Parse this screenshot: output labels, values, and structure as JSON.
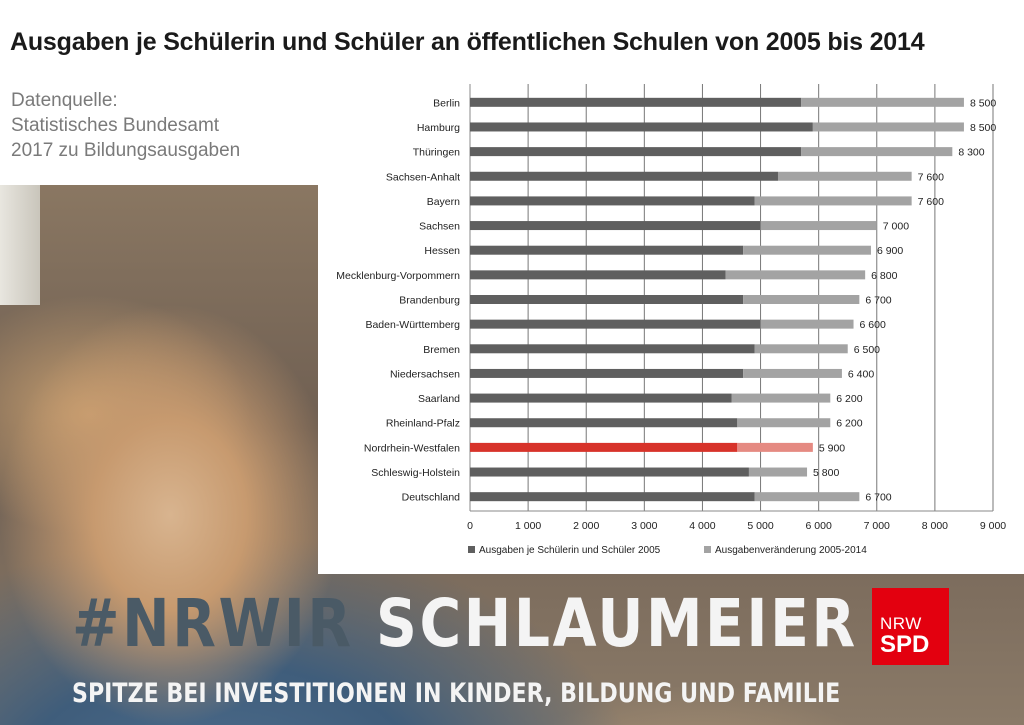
{
  "title": "Ausgaben je Schülerin und Schüler an öffentlichen Schulen von 2005 bis 2014",
  "source": [
    "Datenquelle:",
    "Statistisches Bundesamt",
    "2017 zu Bildungsausgaben"
  ],
  "campaign": {
    "hashtag_part1": "#NRWIR",
    "hashtag_part2": "SCHLAUMEIER",
    "subline": "SPITZE BEI INVESTITIONEN IN KINDER, BILDUNG UND FAMILIE"
  },
  "logo": {
    "line1": "NRW",
    "line2": "SPD",
    "color": "#e3000f"
  },
  "colors": {
    "base": "#5f5f5f",
    "change": "#a3a3a3",
    "highlight_base": "#d7332a",
    "highlight_change": "#e58a82",
    "grid": "#777777"
  },
  "chart_data": {
    "type": "bar",
    "orientation": "horizontal",
    "stacked": true,
    "categories": [
      "Berlin",
      "Hamburg",
      "Thüringen",
      "Sachsen-Anhalt",
      "Bayern",
      "Sachsen",
      "Hessen",
      "Mecklenburg-Vorpommern",
      "Brandenburg",
      "Baden-Württemberg",
      "Bremen",
      "Niedersachsen",
      "Saarland",
      "Rheinland-Pfalz",
      "Nordrhein-Westfalen",
      "Schleswig-Holstein",
      "Deutschland"
    ],
    "series": [
      {
        "name": "Ausgaben je Schülerin und Schüler 2005",
        "values": [
          5700,
          5900,
          5700,
          5300,
          4900,
          5000,
          4700,
          4400,
          4700,
          5000,
          4900,
          4700,
          4500,
          4600,
          4600,
          4800,
          4900
        ]
      },
      {
        "name": "Ausgabenveränderung 2005-2014",
        "values": [
          2800,
          2600,
          2600,
          2300,
          2700,
          2000,
          2200,
          2400,
          2000,
          1600,
          1600,
          1700,
          1700,
          1600,
          1300,
          1000,
          1800
        ]
      }
    ],
    "totals": [
      8500,
      8500,
      8300,
      7600,
      7600,
      7000,
      6900,
      6800,
      6700,
      6600,
      6500,
      6400,
      6200,
      6200,
      5900,
      5800,
      6700
    ],
    "total_labels": [
      "8 500",
      "8 500",
      "8 300",
      "7 600",
      "7 600",
      "7 000",
      "6 900",
      "6 800",
      "6 700",
      "6 600",
      "6 500",
      "6 400",
      "6 200",
      "6 200",
      "5 900",
      "5 800",
      "6 700"
    ],
    "highlight_category": "Nordrhein-Westfalen",
    "xlim": [
      0,
      9000
    ],
    "xticks": [
      0,
      1000,
      2000,
      3000,
      4000,
      5000,
      6000,
      7000,
      8000,
      9000
    ],
    "xtick_labels": [
      "0",
      "1 000",
      "2 000",
      "3 000",
      "4 000",
      "5 000",
      "6 000",
      "7 000",
      "8 000",
      "9 000"
    ],
    "grid": "vertical",
    "legend_position": "bottom"
  }
}
